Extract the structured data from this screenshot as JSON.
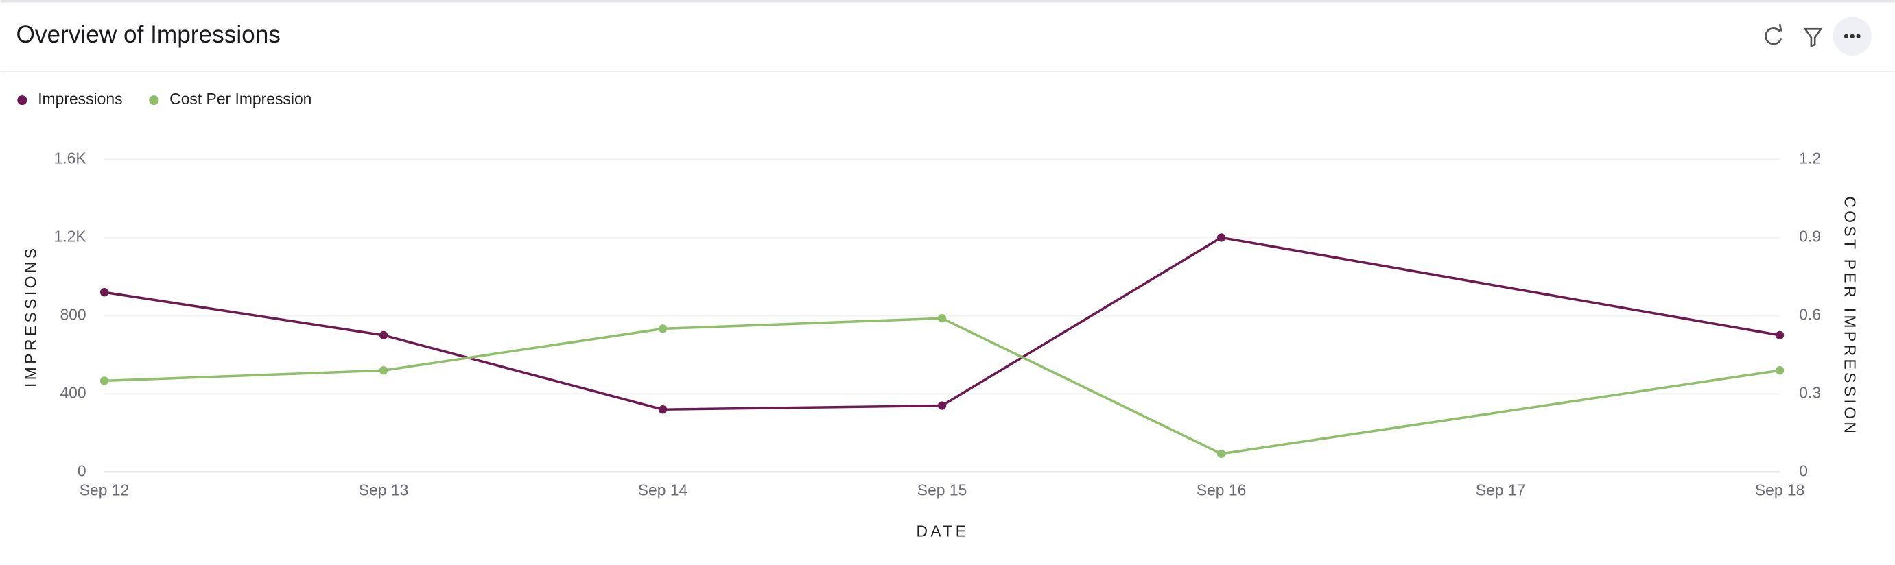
{
  "chart_data": {
    "type": "line",
    "title": "Overview of Impressions",
    "x": [
      "Sep 12",
      "Sep 13",
      "Sep 14",
      "Sep 15",
      "Sep 16",
      "Sep 18"
    ],
    "xticks": [
      "Sep 12",
      "Sep 13",
      "Sep 14",
      "Sep 15",
      "Sep 16",
      "Sep 17",
      "Sep 18"
    ],
    "xlabel": "DATE",
    "ylabel": "IMPRESSIONS",
    "y2label": "COST PER IMPRESSION",
    "ylim": [
      0,
      1600
    ],
    "yticks": [
      0,
      400,
      800,
      {
        "value": 1200,
        "label": "1.2K"
      },
      {
        "value": 1600,
        "label": "1.6K"
      }
    ],
    "y2lim": [
      0,
      1.2
    ],
    "y2ticks": [
      0,
      0.3,
      0.6,
      0.9,
      1.2
    ],
    "grid": true,
    "legend": "top-left",
    "series": [
      {
        "name": "Impressions",
        "color": "#6e1a52",
        "values": [
          920,
          700,
          320,
          340,
          1200,
          700
        ]
      },
      {
        "name": "Cost Per Impression",
        "color": "#8fbf6a",
        "axis": "y2",
        "values": [
          0.35,
          0.39,
          0.55,
          0.59,
          0.07,
          0.39
        ]
      }
    ]
  }
}
